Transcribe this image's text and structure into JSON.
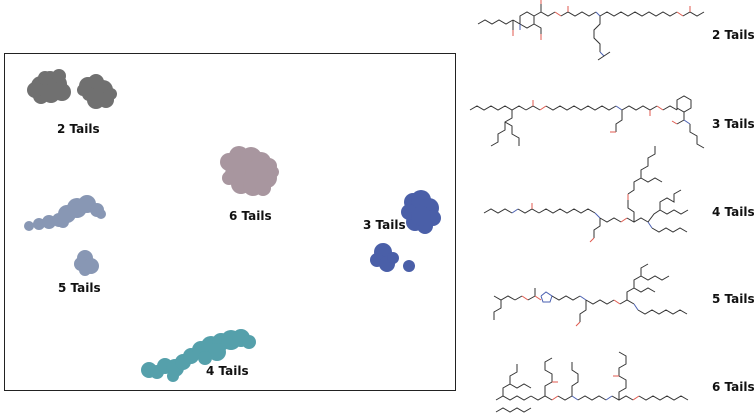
{
  "colors": {
    "tails_2": "#707070",
    "tails_3": "#4a5fa8",
    "tails_4": "#55a0ab",
    "tails_5": "#8897b4",
    "tails_6": "#a8969f",
    "bond": "#333333",
    "oxygen": "#e05a4f",
    "nitrogen": "#4a5fb0"
  },
  "clusters": [
    {
      "id": "2",
      "label": "2 Tails",
      "color_key": "tails_2"
    },
    {
      "id": "3",
      "label": "3 Tails",
      "color_key": "tails_3"
    },
    {
      "id": "4",
      "label": "4 Tails",
      "color_key": "tails_4"
    },
    {
      "id": "5",
      "label": "5 Tails",
      "color_key": "tails_5"
    },
    {
      "id": "6",
      "label": "6 Tails",
      "color_key": "tails_6"
    }
  ],
  "molecules": [
    {
      "id": "2",
      "label": "2 Tails"
    },
    {
      "id": "3",
      "label": "3 Tails"
    },
    {
      "id": "4",
      "label": "4 Tails"
    },
    {
      "id": "5",
      "label": "5 Tails"
    },
    {
      "id": "6",
      "label": "6 Tails"
    }
  ]
}
